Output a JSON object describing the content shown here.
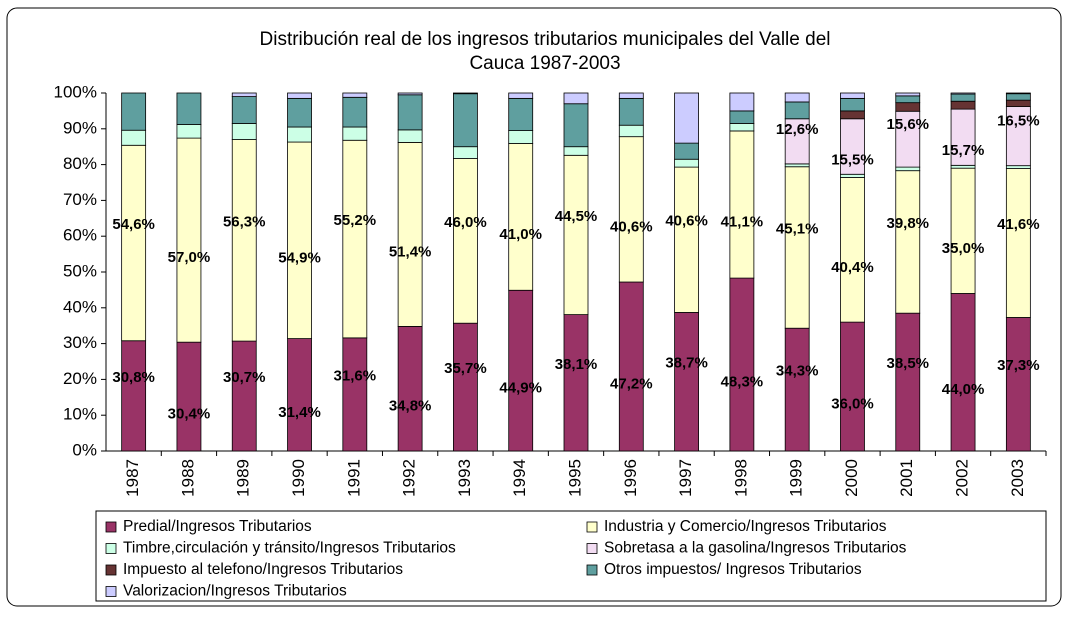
{
  "chart_data": {
    "type": "stacked_bar",
    "title": [
      "Distribución real de los ingresos tributarios  municipales  del Valle del",
      "Cauca 1987-2003"
    ],
    "categories": [
      "1987",
      "1988",
      "1989",
      "1990",
      "1991",
      "1992",
      "1993",
      "1994",
      "1995",
      "1996",
      "1997",
      "1998",
      "1999",
      "2000",
      "2001",
      "2002",
      "2003"
    ],
    "ylim": [
      0,
      100
    ],
    "yticks": [
      {
        "value": 0,
        "label": "0%"
      },
      {
        "value": 10,
        "label": "10%"
      },
      {
        "value": 20,
        "label": "20%"
      },
      {
        "value": 30,
        "label": "30%"
      },
      {
        "value": 40,
        "label": "40%"
      },
      {
        "value": 50,
        "label": "50%"
      },
      {
        "value": 60,
        "label": "60%"
      },
      {
        "value": 70,
        "label": "70%"
      },
      {
        "value": 80,
        "label": "80%"
      },
      {
        "value": 90,
        "label": "90%"
      },
      {
        "value": 100,
        "label": "100%"
      }
    ],
    "grid": false,
    "series": [
      {
        "name": "Predial/Ingresos Tributarios",
        "color": "#993366",
        "values": [
          30.8,
          30.4,
          30.7,
          31.4,
          31.6,
          34.8,
          35.7,
          44.9,
          38.1,
          47.2,
          38.7,
          48.3,
          34.3,
          36.0,
          38.5,
          44.0,
          37.3
        ],
        "value_labels": [
          "30,8%",
          "30,4%",
          "30,7%",
          "31,4%",
          "31,6%",
          "34,8%",
          "35,7%",
          "44,9%",
          "38,1%",
          "47,2%",
          "38,7%",
          "48,3%",
          "34,3%",
          "36,0%",
          "38,5%",
          "44,0%",
          "37,3%"
        ]
      },
      {
        "name": "Industria y Comercio/Ingresos Tributarios",
        "color": "#ffffcc",
        "values": [
          54.6,
          57.0,
          56.3,
          54.9,
          55.2,
          51.4,
          46.0,
          41.0,
          44.5,
          40.6,
          40.6,
          41.1,
          45.1,
          40.4,
          39.8,
          35.0,
          41.6
        ],
        "value_labels": [
          "54,6%",
          "57,0%",
          "56,3%",
          "54,9%",
          "55,2%",
          "51,4%",
          "46,0%",
          "41,0%",
          "44,5%",
          "40,6%",
          "40,6%",
          "41,1%",
          "45,1%",
          "40,4%",
          "39,8%",
          "35,0%",
          "41,6%"
        ]
      },
      {
        "name": "Timbre,circulación y tránsito/Ingresos Tributarios",
        "color": "#ccffe6",
        "values": [
          4.2,
          3.8,
          4.5,
          4.2,
          3.7,
          3.5,
          3.3,
          3.6,
          2.4,
          3.2,
          2.2,
          2.1,
          0.8,
          0.9,
          1.0,
          0.8,
          0.8
        ]
      },
      {
        "name": "Sobretasa a la gasolina/Ingresos Tributarios",
        "color": "#f2dcf2",
        "values": [
          0,
          0,
          0,
          0,
          0,
          0,
          0,
          0,
          0,
          0,
          0,
          0,
          12.6,
          15.5,
          15.6,
          15.7,
          16.5
        ],
        "value_labels": [
          null,
          null,
          null,
          null,
          null,
          null,
          null,
          null,
          null,
          null,
          null,
          null,
          "12,6%",
          "15,5%",
          "15,6%",
          "15,7%",
          "16,5%"
        ]
      },
      {
        "name": "Impuesto al telefono/Ingresos Tributarios",
        "color": "#663333",
        "values": [
          0,
          0,
          0,
          0,
          0,
          0,
          0,
          0,
          0,
          0,
          0,
          0,
          0,
          2.2,
          2.4,
          2.2,
          1.8
        ]
      },
      {
        "name": "Otros impuestos/ Ingresos Tributarios",
        "color": "#5f9f9f",
        "values": [
          10.4,
          8.8,
          7.5,
          8.0,
          8.3,
          9.8,
          14.8,
          9.0,
          12.0,
          7.5,
          4.5,
          3.5,
          4.7,
          3.5,
          1.9,
          2.0,
          1.8
        ]
      },
      {
        "name": "Valorizacion/Ingresos Tributarios",
        "color": "#ccccff",
        "values": [
          0,
          0,
          1.0,
          1.5,
          1.2,
          0.5,
          0.2,
          1.5,
          3.0,
          1.5,
          14.0,
          5.0,
          2.5,
          1.5,
          0.8,
          0.3,
          0.2
        ]
      }
    ]
  }
}
